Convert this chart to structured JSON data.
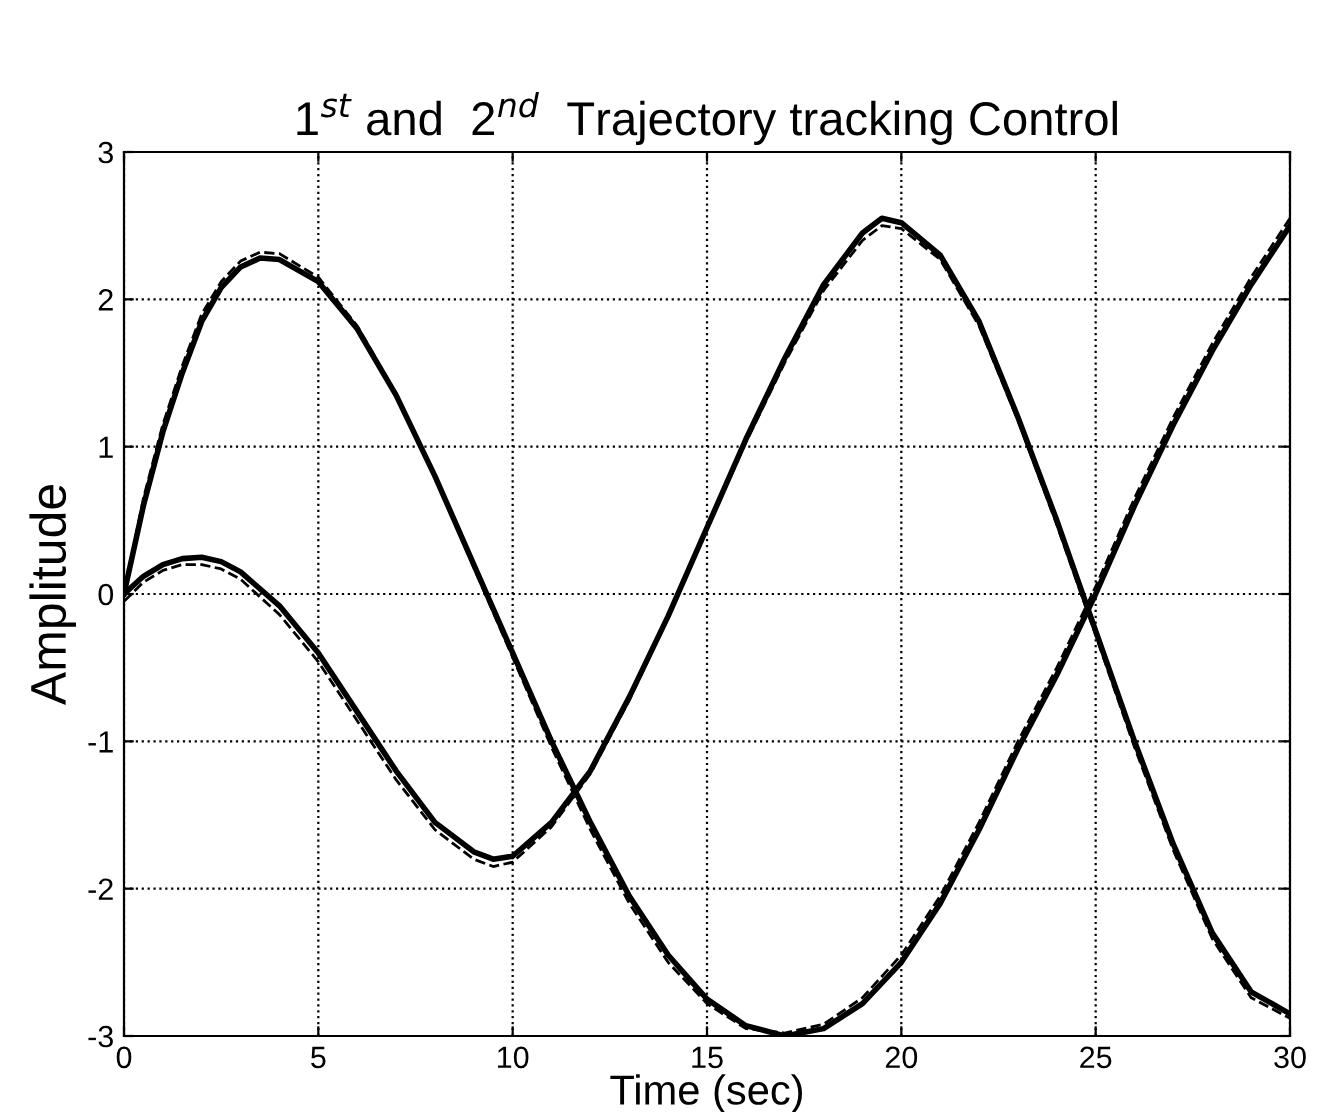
{
  "chart_data": {
    "type": "line",
    "title": "1$^{st}$ and  2$^{nd}$  Trajectory tracking Control",
    "xlabel": "Time (sec)",
    "ylabel": "Amplitude",
    "xlim": [
      0,
      30
    ],
    "ylim": [
      -3,
      3
    ],
    "xticks": [
      0,
      5,
      10,
      15,
      20,
      25,
      30
    ],
    "yticks": [
      -3,
      -2,
      -1,
      0,
      1,
      2,
      3
    ],
    "grid": true,
    "legend": false,
    "marker": "none",
    "series": [
      {
        "color": "#000000",
        "line_style": "solid",
        "x": [
          0,
          0.5,
          1,
          1.5,
          2,
          2.5,
          3,
          3.5,
          4,
          5,
          6,
          7,
          8,
          9,
          10,
          11,
          12,
          13,
          14,
          15,
          16,
          17,
          18,
          19,
          20,
          21,
          22,
          23,
          24,
          25,
          26,
          27,
          28,
          29,
          30
        ],
        "values": [
          0,
          0.6,
          1.1,
          1.5,
          1.85,
          2.08,
          2.22,
          2.28,
          2.27,
          2.12,
          1.8,
          1.35,
          0.8,
          0.2,
          -0.4,
          -1.0,
          -1.55,
          -2.05,
          -2.45,
          -2.75,
          -2.93,
          -3.0,
          -2.95,
          -2.78,
          -2.5,
          -2.1,
          -1.6,
          -1.05,
          -0.55,
          0.0,
          0.6,
          1.15,
          1.65,
          2.1,
          2.5
        ]
      },
      {
        "color": "#000000",
        "line_style": "dashed",
        "x": [
          0,
          0.5,
          1,
          1.5,
          2,
          2.5,
          3,
          3.5,
          4,
          5,
          6,
          7,
          8,
          9,
          10,
          11,
          12,
          13,
          14,
          15,
          16,
          17,
          18,
          19,
          20,
          21,
          22,
          23,
          24,
          25,
          26,
          27,
          28,
          29,
          30
        ],
        "values": [
          0,
          0.65,
          1.15,
          1.55,
          1.9,
          2.12,
          2.26,
          2.32,
          2.31,
          2.15,
          1.82,
          1.36,
          0.8,
          0.18,
          -0.43,
          -1.04,
          -1.6,
          -2.1,
          -2.5,
          -2.78,
          -2.95,
          -2.98,
          -2.92,
          -2.74,
          -2.45,
          -2.05,
          -1.55,
          -1.0,
          -0.5,
          0.05,
          0.65,
          1.2,
          1.7,
          2.15,
          2.55
        ]
      },
      {
        "color": "#000000",
        "line_style": "solid",
        "x": [
          0,
          0.5,
          1,
          1.5,
          2,
          2.5,
          3,
          4,
          5,
          6,
          7,
          8,
          9,
          9.5,
          10,
          11,
          12,
          13,
          14,
          15,
          16,
          17,
          18,
          19,
          19.5,
          20,
          21,
          22,
          23,
          24,
          25,
          26,
          27,
          28,
          29,
          30
        ],
        "values": [
          0,
          0.12,
          0.2,
          0.24,
          0.25,
          0.22,
          0.15,
          -0.08,
          -0.4,
          -0.8,
          -1.2,
          -1.55,
          -1.75,
          -1.8,
          -1.78,
          -1.55,
          -1.2,
          -0.7,
          -0.15,
          0.45,
          1.05,
          1.6,
          2.1,
          2.45,
          2.55,
          2.52,
          2.3,
          1.85,
          1.2,
          0.5,
          -0.25,
          -1.0,
          -1.7,
          -2.3,
          -2.7,
          -2.85
        ]
      },
      {
        "color": "#000000",
        "line_style": "dashed",
        "x": [
          0,
          0.5,
          1,
          1.5,
          2,
          2.5,
          3,
          4,
          5,
          6,
          7,
          8,
          9,
          9.5,
          10,
          11,
          12,
          13,
          14,
          15,
          16,
          17,
          18,
          19,
          19.5,
          20,
          21,
          22,
          23,
          24,
          25,
          26,
          27,
          28,
          29,
          30
        ],
        "values": [
          -0.05,
          0.08,
          0.16,
          0.2,
          0.2,
          0.17,
          0.1,
          -0.14,
          -0.46,
          -0.86,
          -1.26,
          -1.6,
          -1.8,
          -1.85,
          -1.82,
          -1.58,
          -1.22,
          -0.72,
          -0.16,
          0.44,
          1.03,
          1.57,
          2.06,
          2.4,
          2.5,
          2.48,
          2.27,
          1.82,
          1.18,
          0.47,
          -0.28,
          -1.04,
          -1.74,
          -2.34,
          -2.74,
          -2.88
        ]
      }
    ]
  }
}
